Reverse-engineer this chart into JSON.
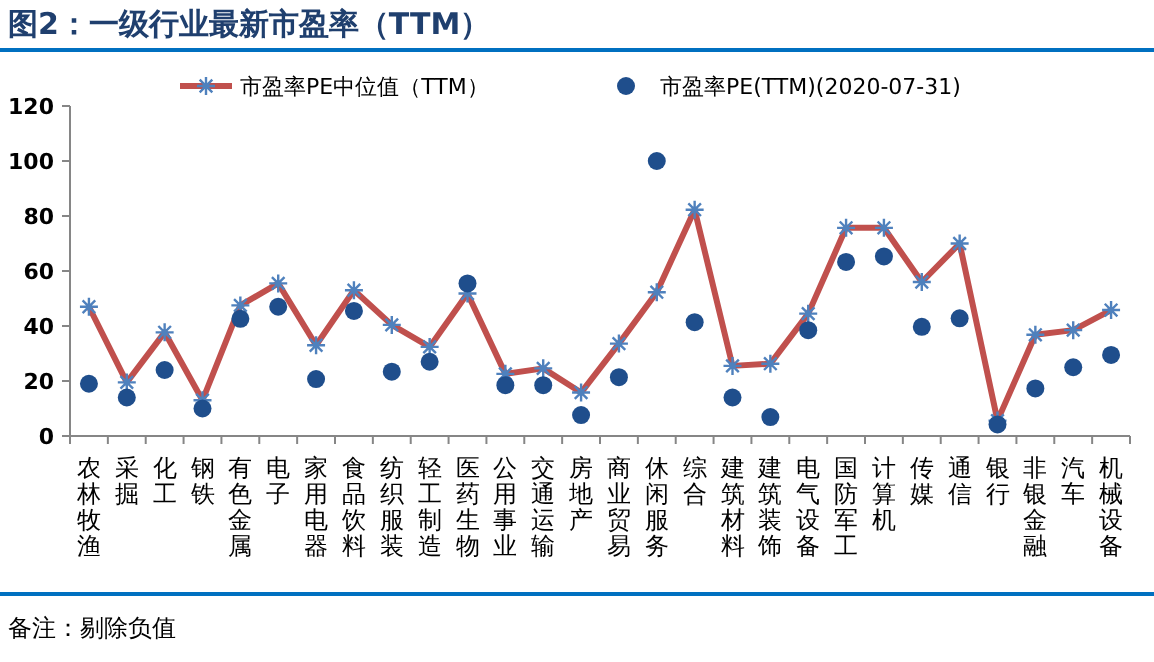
{
  "chart_data": {
    "type": "line",
    "title": "图2：一级行业最新市盈率（TTM）",
    "categories": [
      "农林牧渔",
      "采掘",
      "化工",
      "钢铁",
      "有色金属",
      "电子",
      "家用电器",
      "食品饮料",
      "纺织服装",
      "轻工制造",
      "医药生物",
      "公用事业",
      "交通运输",
      "房地产",
      "商业贸易",
      "休闲服务",
      "综合",
      "建筑材料",
      "建筑装饰",
      "电气设备",
      "国防军工",
      "计算机",
      "传媒",
      "通信",
      "银行",
      "非银金融",
      "汽车",
      "机械设备"
    ],
    "series": [
      {
        "name": "市盈率PE中位值（TTM）",
        "color": "#c0504d",
        "marker": "cross",
        "values": [
          47,
          19.5,
          37.7,
          13,
          47.5,
          55.5,
          33,
          53,
          40.4,
          32.4,
          51.8,
          22.6,
          24.6,
          15.8,
          33.6,
          52.3,
          82.3,
          25.5,
          26.3,
          44.5,
          75.7,
          75.7,
          56,
          70,
          5.6,
          36.8,
          38.5,
          45.8
        ]
      },
      {
        "name": "市盈率PE(TTM)(2020-07-31)",
        "type": "scatter",
        "color": "#1f4e8c",
        "marker": "circle",
        "values": [
          19,
          14,
          24,
          10,
          42.6,
          47,
          20.7,
          45.5,
          23.4,
          27,
          55.5,
          18.5,
          18.5,
          7.6,
          21.4,
          100,
          41.4,
          14,
          6.9,
          38.5,
          63.3,
          65.3,
          39.7,
          42.8,
          4.2,
          17.3,
          25,
          29.5
        ]
      }
    ],
    "ylim": [
      0,
      120
    ],
    "yticks": [
      0,
      20,
      40,
      60,
      80,
      100,
      120
    ],
    "grid": false,
    "legend": "top",
    "annotations": [
      "备注：剔除负值"
    ]
  }
}
